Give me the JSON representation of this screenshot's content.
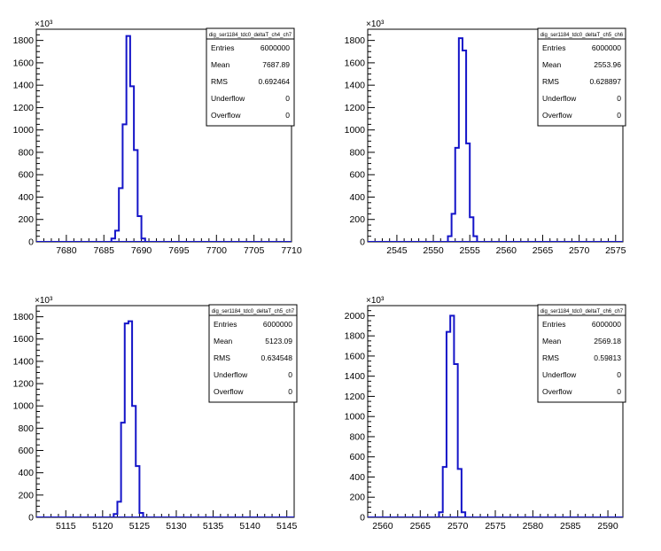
{
  "chart_data": [
    {
      "type": "histogram",
      "title": "dig_ser1184_tdc0_deltaT_ch4_ch7",
      "y_multiplier": "×10³",
      "xlim": [
        7676,
        7710
      ],
      "ylim": [
        0,
        1900
      ],
      "xticks": [
        7680,
        7685,
        7690,
        7695,
        7700,
        7705,
        7710
      ],
      "yticks": [
        0,
        200,
        400,
        600,
        800,
        1000,
        1200,
        1400,
        1600,
        1800
      ],
      "bin_width": 0.5,
      "bins": [
        {
          "x": 7686.0,
          "y": 30
        },
        {
          "x": 7686.5,
          "y": 100
        },
        {
          "x": 7687.0,
          "y": 480
        },
        {
          "x": 7687.5,
          "y": 1050
        },
        {
          "x": 7688.0,
          "y": 1840
        },
        {
          "x": 7688.5,
          "y": 1390
        },
        {
          "x": 7689.0,
          "y": 820
        },
        {
          "x": 7689.5,
          "y": 230
        },
        {
          "x": 7690.0,
          "y": 30
        }
      ],
      "stats": [
        {
          "label": "Entries",
          "value": "6000000"
        },
        {
          "label": "Mean",
          "value": "7687.89"
        },
        {
          "label": "RMS",
          "value": "0.692464"
        },
        {
          "label": "Underflow",
          "value": "0"
        },
        {
          "label": "Overflow",
          "value": "0"
        }
      ]
    },
    {
      "type": "histogram",
      "title": "dig_ser1184_tdc0_deltaT_ch5_ch6",
      "y_multiplier": "×10³",
      "xlim": [
        2541,
        2576
      ],
      "ylim": [
        0,
        1900
      ],
      "xticks": [
        2545,
        2550,
        2555,
        2560,
        2565,
        2570,
        2575
      ],
      "yticks": [
        0,
        200,
        400,
        600,
        800,
        1000,
        1200,
        1400,
        1600,
        1800
      ],
      "bin_width": 0.5,
      "bins": [
        {
          "x": 2552.0,
          "y": 50
        },
        {
          "x": 2552.5,
          "y": 250
        },
        {
          "x": 2553.0,
          "y": 840
        },
        {
          "x": 2553.5,
          "y": 1820
        },
        {
          "x": 2554.0,
          "y": 1710
        },
        {
          "x": 2554.5,
          "y": 880
        },
        {
          "x": 2555.0,
          "y": 220
        },
        {
          "x": 2555.5,
          "y": 50
        }
      ],
      "stats": [
        {
          "label": "Entries",
          "value": "6000000"
        },
        {
          "label": "Mean",
          "value": "2553.96"
        },
        {
          "label": "RMS",
          "value": "0.628897"
        },
        {
          "label": "Underflow",
          "value": "0"
        },
        {
          "label": "Overflow",
          "value": "0"
        }
      ]
    },
    {
      "type": "histogram",
      "title": "dig_ser1184_tdc0_deltaT_ch5_ch7",
      "y_multiplier": "×10³",
      "xlim": [
        5111,
        5146
      ],
      "ylim": [
        0,
        1900
      ],
      "xticks": [
        5115,
        5120,
        5125,
        5130,
        5135,
        5140,
        5145
      ],
      "yticks": [
        0,
        200,
        400,
        600,
        800,
        1000,
        1200,
        1400,
        1600,
        1800
      ],
      "bin_width": 0.5,
      "bins": [
        {
          "x": 5121.5,
          "y": 30
        },
        {
          "x": 5122.0,
          "y": 140
        },
        {
          "x": 5122.5,
          "y": 850
        },
        {
          "x": 5123.0,
          "y": 1740
        },
        {
          "x": 5123.5,
          "y": 1760
        },
        {
          "x": 5124.0,
          "y": 1000
        },
        {
          "x": 5124.5,
          "y": 460
        },
        {
          "x": 5125.0,
          "y": 40
        }
      ],
      "stats": [
        {
          "label": "Entries",
          "value": "6000000"
        },
        {
          "label": "Mean",
          "value": "5123.09"
        },
        {
          "label": "RMS",
          "value": "0.634548"
        },
        {
          "label": "Underflow",
          "value": "0"
        },
        {
          "label": "Overflow",
          "value": "0"
        }
      ]
    },
    {
      "type": "histogram",
      "title": "dig_ser1184_tdc0_deltaT_ch6_ch7",
      "y_multiplier": "×10³",
      "xlim": [
        2558,
        2592
      ],
      "ylim": [
        0,
        2100
      ],
      "xticks": [
        2560,
        2565,
        2570,
        2575,
        2580,
        2585,
        2590
      ],
      "yticks": [
        0,
        200,
        400,
        600,
        800,
        1000,
        1200,
        1400,
        1600,
        1800,
        2000
      ],
      "bin_width": 0.5,
      "bins": [
        {
          "x": 2567.5,
          "y": 50
        },
        {
          "x": 2568.0,
          "y": 500
        },
        {
          "x": 2568.5,
          "y": 1840
        },
        {
          "x": 2569.0,
          "y": 2000
        },
        {
          "x": 2569.5,
          "y": 1520
        },
        {
          "x": 2570.0,
          "y": 480
        },
        {
          "x": 2570.5,
          "y": 50
        }
      ],
      "stats": [
        {
          "label": "Entries",
          "value": "6000000"
        },
        {
          "label": "Mean",
          "value": "2569.18"
        },
        {
          "label": "RMS",
          "value": "0.59813"
        },
        {
          "label": "Underflow",
          "value": "0"
        },
        {
          "label": "Overflow",
          "value": "0"
        }
      ]
    }
  ]
}
